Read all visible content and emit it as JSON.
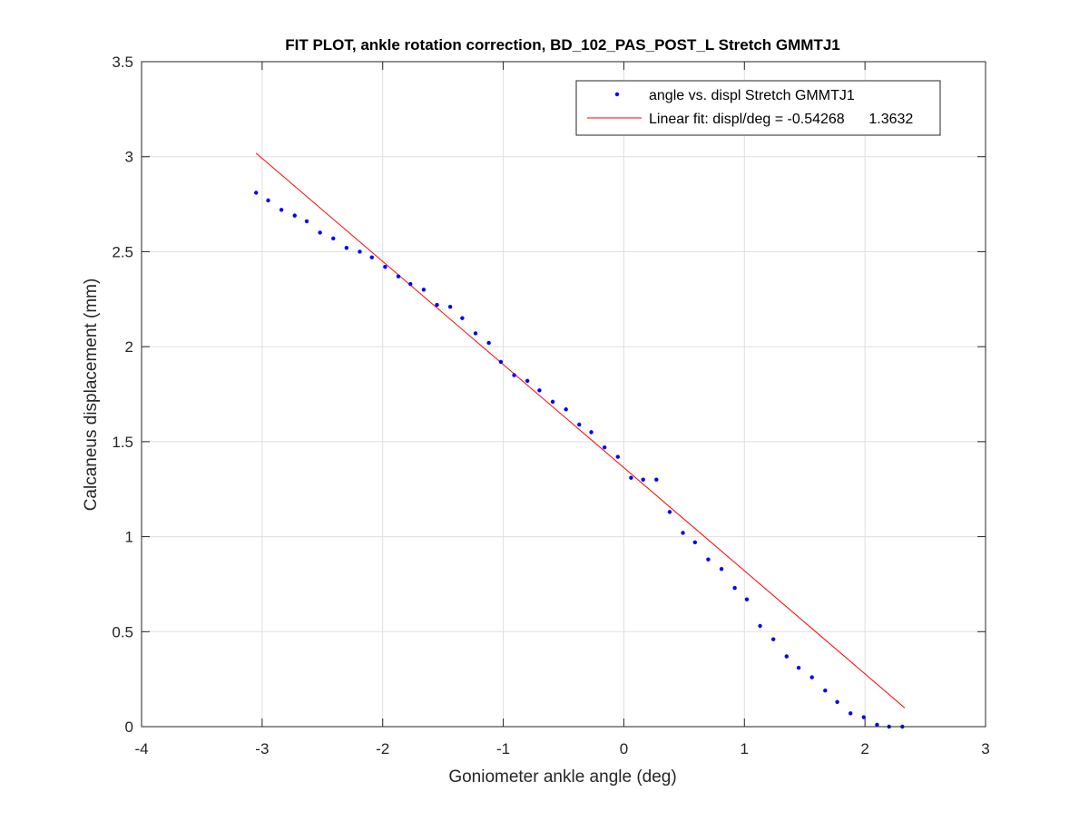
{
  "chart_data": {
    "type": "scatter",
    "title": "FIT PLOT, ankle rotation correction, BD_102_PAS_POST_L Stretch GMMTJ1",
    "xlabel": "Goniometer ankle angle (deg)",
    "ylabel": "Calcaneus displacement (mm)",
    "xlim": [
      -4,
      3
    ],
    "ylim": [
      0,
      3.5
    ],
    "xticks": [
      -4,
      -3,
      -2,
      -1,
      0,
      1,
      2,
      3
    ],
    "xtick_labels": [
      "-4",
      "-3",
      "-2",
      "-1",
      "0",
      "1",
      "2",
      "3"
    ],
    "yticks": [
      0,
      0.5,
      1,
      1.5,
      2,
      2.5,
      3,
      3.5
    ],
    "ytick_labels": [
      "0",
      "0.5",
      "1",
      "1.5",
      "2",
      "2.5",
      "3",
      "3.5"
    ],
    "grid": true,
    "legend_position": "top-right",
    "series": [
      {
        "name": "angle vs. displ Stretch GMMTJ1",
        "kind": "points",
        "color": "#0000ff",
        "x": [
          -3.05,
          -2.95,
          -2.84,
          -2.73,
          -2.63,
          -2.52,
          -2.41,
          -2.3,
          -2.19,
          -2.09,
          -1.98,
          -1.87,
          -1.77,
          -1.66,
          -1.55,
          -1.44,
          -1.34,
          -1.23,
          -1.12,
          -1.02,
          -0.91,
          -0.8,
          -0.7,
          -0.59,
          -0.48,
          -0.37,
          -0.27,
          -0.16,
          -0.05,
          0.06,
          0.16,
          0.27,
          0.38,
          0.49,
          0.59,
          0.7,
          0.81,
          0.92,
          1.02,
          1.13,
          1.24,
          1.35,
          1.45,
          1.56,
          1.67,
          1.77,
          1.88,
          1.99,
          2.1,
          2.2,
          2.31
        ],
        "y": [
          2.81,
          2.77,
          2.72,
          2.69,
          2.66,
          2.6,
          2.57,
          2.52,
          2.5,
          2.47,
          2.42,
          2.37,
          2.33,
          2.3,
          2.22,
          2.21,
          2.15,
          2.07,
          2.02,
          1.92,
          1.85,
          1.82,
          1.77,
          1.71,
          1.67,
          1.59,
          1.55,
          1.47,
          1.42,
          1.31,
          1.3,
          1.3,
          1.13,
          1.02,
          0.97,
          0.88,
          0.83,
          0.73,
          0.67,
          0.53,
          0.46,
          0.37,
          0.31,
          0.26,
          0.19,
          0.13,
          0.07,
          0.05,
          0.01,
          0.0,
          0.0
        ]
      },
      {
        "name": "Linear fit: displ/deg = -0.54268      1.3632",
        "kind": "line",
        "color": "#ff0000",
        "slope": -0.54268,
        "intercept": 1.3632,
        "x_range": [
          -3.05,
          2.33
        ]
      }
    ]
  }
}
